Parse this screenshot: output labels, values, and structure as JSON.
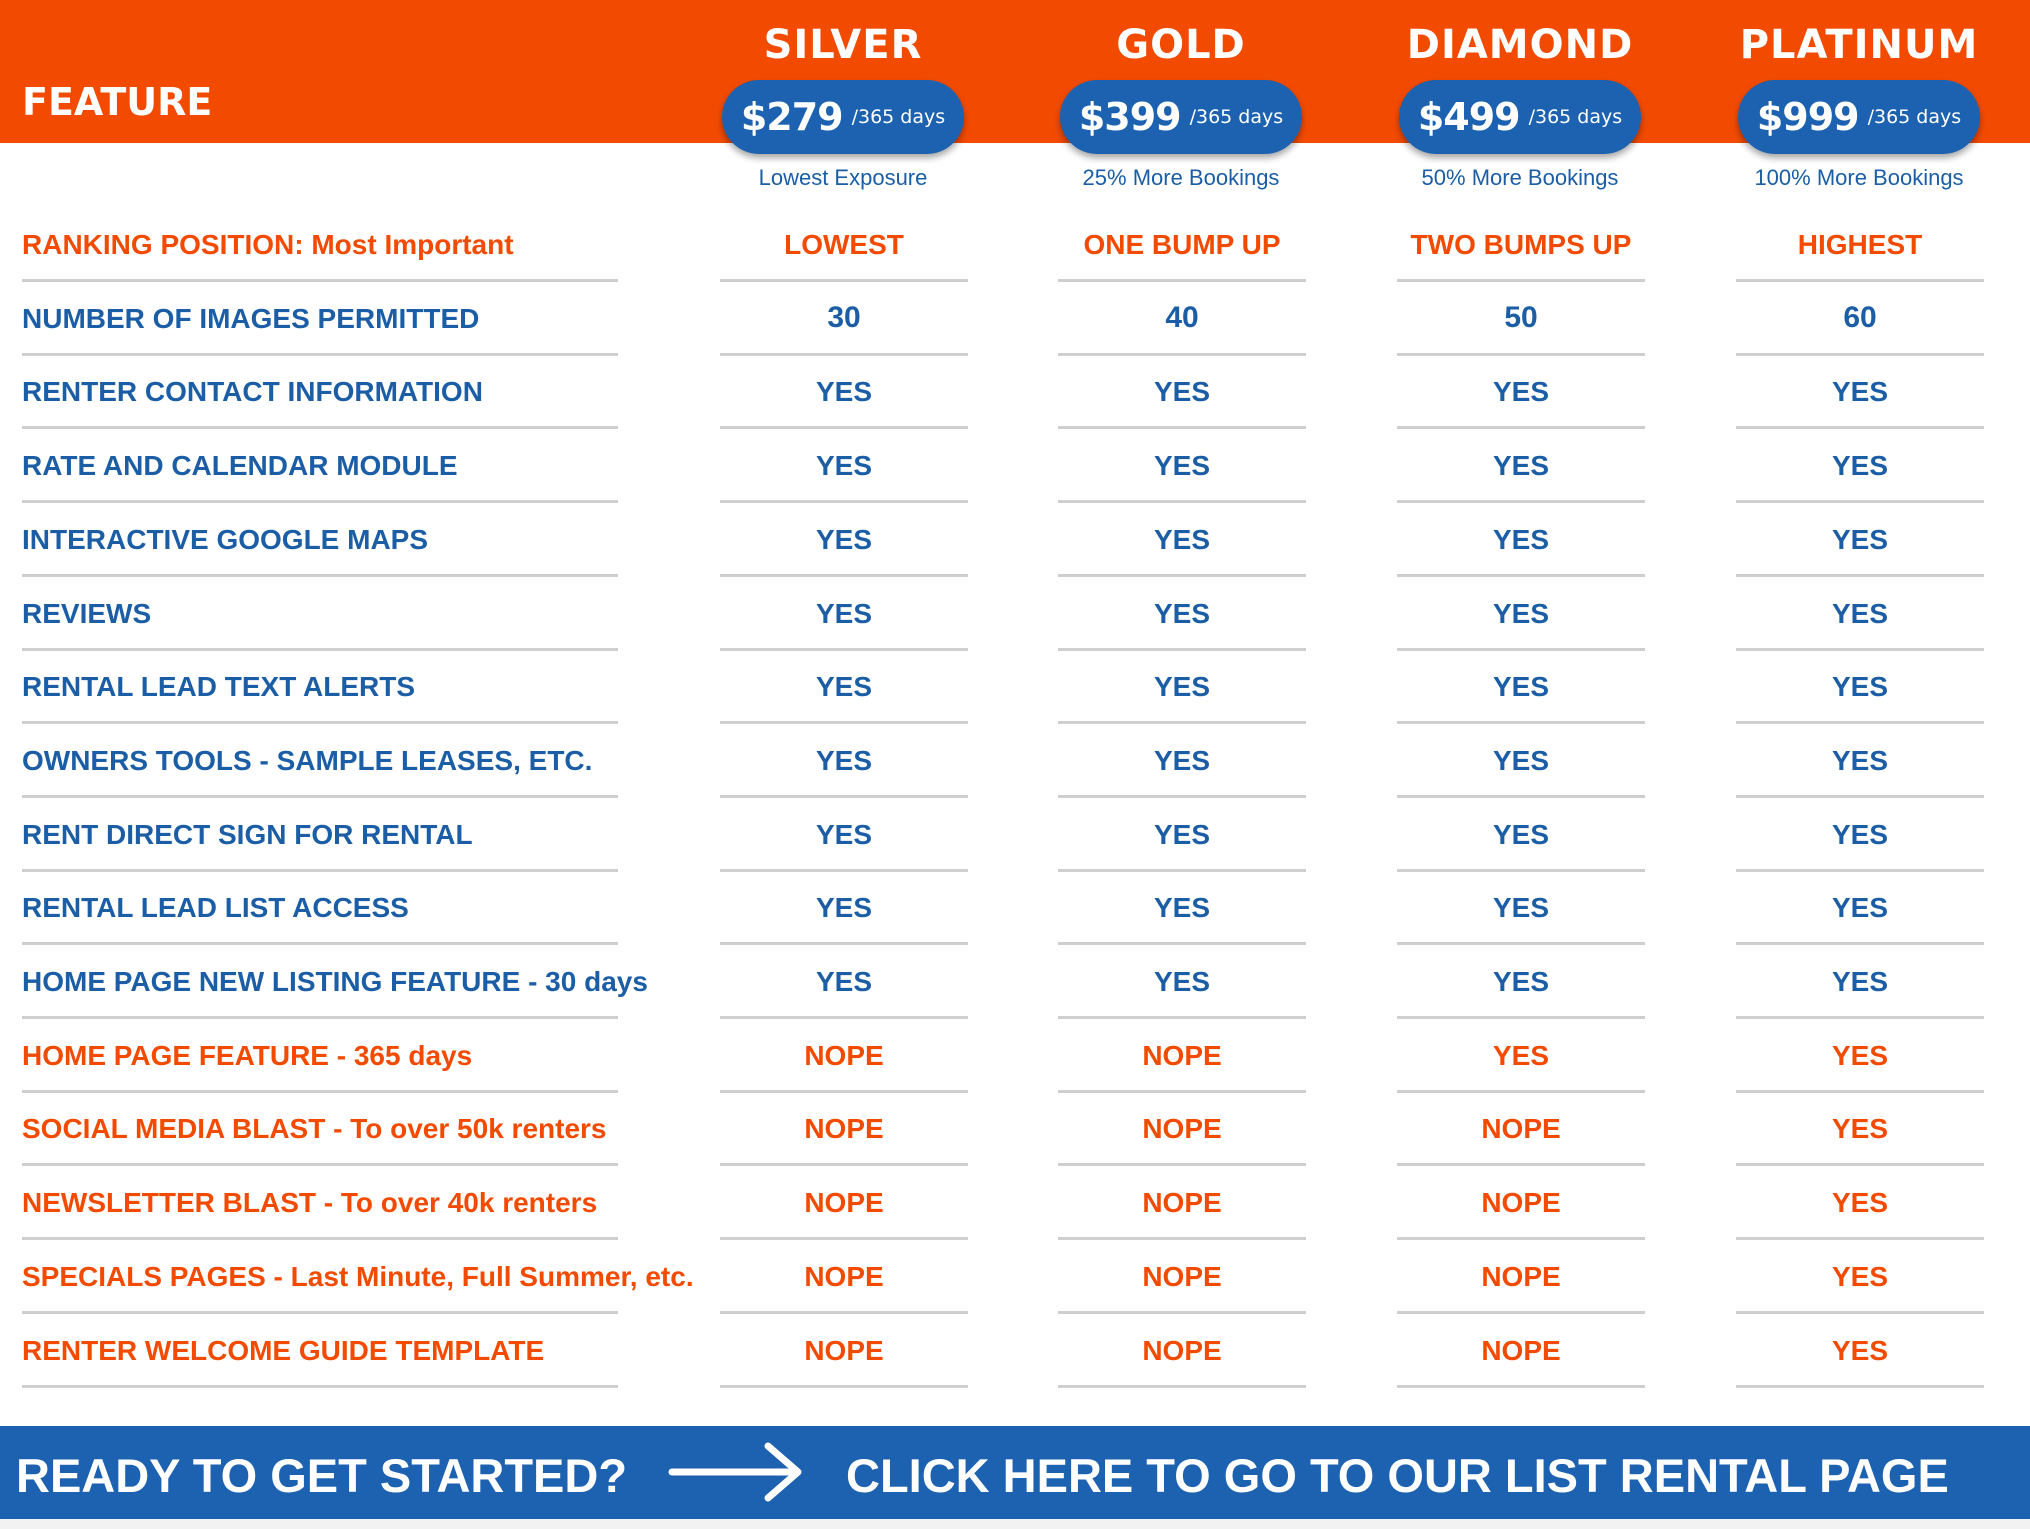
{
  "header": {
    "feature_label": "FEATURE"
  },
  "plans": [
    {
      "name": "SILVER",
      "price": "$279",
      "period": "/365 days",
      "tagline": "Lowest Exposure"
    },
    {
      "name": "GOLD",
      "price": "$399",
      "period": "/365 days",
      "tagline": "25% More Bookings"
    },
    {
      "name": "DIAMOND",
      "price": "$499",
      "period": "/365 days",
      "tagline": "50% More Bookings"
    },
    {
      "name": "PLATINUM",
      "price": "$999",
      "period": "/365 days",
      "tagline": "100% More Bookings"
    }
  ],
  "rows": [
    {
      "feature": "RANKING POSITION: Most Important",
      "values": [
        "LOWEST",
        "ONE BUMP UP",
        "TWO BUMPS UP",
        "HIGHEST"
      ]
    },
    {
      "feature": "NUMBER OF IMAGES PERMITTED",
      "values": [
        "30",
        "40",
        "50",
        "60"
      ]
    },
    {
      "feature": "RENTER CONTACT INFORMATION",
      "values": [
        "YES",
        "YES",
        "YES",
        "YES"
      ]
    },
    {
      "feature": "RATE AND CALENDAR MODULE",
      "values": [
        "YES",
        "YES",
        "YES",
        "YES"
      ]
    },
    {
      "feature": "INTERACTIVE GOOGLE MAPS",
      "values": [
        "YES",
        "YES",
        "YES",
        "YES"
      ]
    },
    {
      "feature": "REVIEWS",
      "values": [
        "YES",
        "YES",
        "YES",
        "YES"
      ]
    },
    {
      "feature": "RENTAL LEAD TEXT ALERTS",
      "values": [
        "YES",
        "YES",
        "YES",
        "YES"
      ]
    },
    {
      "feature": "OWNERS TOOLS - SAMPLE LEASES, ETC.",
      "values": [
        "YES",
        "YES",
        "YES",
        "YES"
      ]
    },
    {
      "feature": "RENT DIRECT SIGN FOR RENTAL",
      "values": [
        "YES",
        "YES",
        "YES",
        "YES"
      ]
    },
    {
      "feature": "RENTAL LEAD LIST ACCESS",
      "values": [
        "YES",
        "YES",
        "YES",
        "YES"
      ]
    },
    {
      "feature": "HOME PAGE NEW LISTING FEATURE - 30 days",
      "values": [
        "YES",
        "YES",
        "YES",
        "YES"
      ]
    },
    {
      "feature": "HOME PAGE FEATURE - 365 days",
      "values": [
        "NOPE",
        "NOPE",
        "YES",
        "YES"
      ]
    },
    {
      "feature": "SOCIAL MEDIA BLAST - To over 50k renters",
      "values": [
        "NOPE",
        "NOPE",
        "NOPE",
        "YES"
      ]
    },
    {
      "feature": "NEWSLETTER BLAST - To over 40k renters",
      "values": [
        "NOPE",
        "NOPE",
        "NOPE",
        "YES"
      ]
    },
    {
      "feature": "SPECIALS PAGES - Last Minute, Full Summer, etc.",
      "values": [
        "NOPE",
        "NOPE",
        "NOPE",
        "YES"
      ]
    },
    {
      "feature": "RENTER WELCOME GUIDE TEMPLATE",
      "values": [
        "NOPE",
        "NOPE",
        "NOPE",
        "YES"
      ]
    }
  ],
  "cta": {
    "left_text": "READY TO GET STARTED?",
    "right_text": "CLICK HERE TO GO TO OUR LIST RENTAL PAGE"
  },
  "colors": {
    "orange": "#f24b00",
    "blue": "#1c62b0",
    "text_blue": "#1b5ea6",
    "divider": "#cfcfcf"
  },
  "icons": {
    "cta_arrow": "right-arrow-icon"
  }
}
